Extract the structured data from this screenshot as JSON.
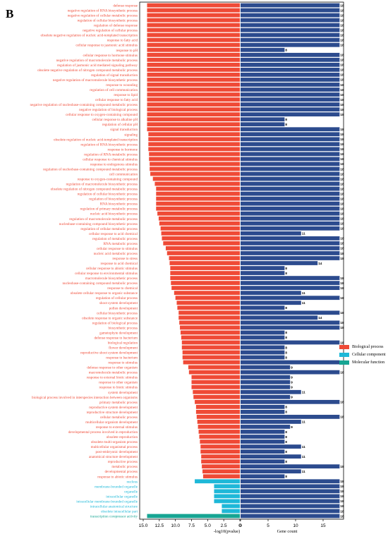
{
  "panel_label": "B",
  "colors": {
    "biological": "#ef4a36",
    "cellular": "#1eb8d8",
    "molecular": "#17a593",
    "count": "#2c4b8e"
  },
  "chart_data": {
    "type": "bar",
    "left_xlabel": "-log10(pvalue)",
    "right_xlabel": "Gene count",
    "left_xlim": [
      15,
      0
    ],
    "left_ticks": [
      "15.0",
      "12.5",
      "10.0",
      "7.5",
      "5.0",
      "2.5",
      "0"
    ],
    "right_xlim": [
      0,
      20
    ],
    "right_ticks": [
      "0",
      "5",
      "10",
      "15"
    ],
    "legend": [
      {
        "label": "Biological process",
        "category": "biological"
      },
      {
        "label": "Cellular component",
        "category": "cellular"
      },
      {
        "label": "Molecular function",
        "category": "molecular"
      }
    ],
    "terms": [
      {
        "term": "defense response",
        "category": "biological",
        "log_p": 14.4,
        "count": 18
      },
      {
        "term": "negative regulation of RNA biosynthetic process",
        "category": "biological",
        "log_p": 14.4,
        "count": 18
      },
      {
        "term": "negative regulation of cellular metabolic process",
        "category": "biological",
        "log_p": 14.4,
        "count": 18
      },
      {
        "term": "regulation of cellular biosynthetic process",
        "category": "biological",
        "log_p": 14.4,
        "count": 18
      },
      {
        "term": "regulation of defense response",
        "category": "biological",
        "log_p": 14.4,
        "count": 18
      },
      {
        "term": "negative regulation of cellular process",
        "category": "biological",
        "log_p": 14.4,
        "count": 18
      },
      {
        "term": "obsolete negative regulation of nucleic acid-templated transcription",
        "category": "biological",
        "log_p": 14.4,
        "count": 18
      },
      {
        "term": "response to fatty acid",
        "category": "biological",
        "log_p": 14.4,
        "count": 18
      },
      {
        "term": "cellular response to jasmonic acid stimulus",
        "category": "biological",
        "log_p": 14.4,
        "count": 18
      },
      {
        "term": "response to pH",
        "category": "biological",
        "log_p": 14.4,
        "count": 8
      },
      {
        "term": "cellular response to hormone stimulus",
        "category": "biological",
        "log_p": 14.4,
        "count": 18
      },
      {
        "term": "negative regulation of macromolecule metabolic process",
        "category": "biological",
        "log_p": 14.4,
        "count": 18
      },
      {
        "term": "regulation of jasmonic acid mediated signaling pathway",
        "category": "biological",
        "log_p": 14.4,
        "count": 18
      },
      {
        "term": "obsolete negative regulation of nitrogen compound metabolic process",
        "category": "biological",
        "log_p": 14.4,
        "count": 18
      },
      {
        "term": "regulation of signal transduction",
        "category": "biological",
        "log_p": 14.4,
        "count": 18
      },
      {
        "term": "negative regulation of macromolecule biosynthetic process",
        "category": "biological",
        "log_p": 14.4,
        "count": 18
      },
      {
        "term": "response to wounding",
        "category": "biological",
        "log_p": 14.4,
        "count": 18
      },
      {
        "term": "regulation of cell communication",
        "category": "biological",
        "log_p": 14.4,
        "count": 18
      },
      {
        "term": "response to lipid",
        "category": "biological",
        "log_p": 14.4,
        "count": 18
      },
      {
        "term": "cellular response to fatty acid",
        "category": "biological",
        "log_p": 14.4,
        "count": 18
      },
      {
        "term": "negative regulation of nucleobase-containing compound metabolic process",
        "category": "biological",
        "log_p": 14.4,
        "count": 18
      },
      {
        "term": "negative regulation of biological process",
        "category": "biological",
        "log_p": 14.4,
        "count": 18
      },
      {
        "term": "cellular response to oxygen-containing compound",
        "category": "biological",
        "log_p": 14.4,
        "count": 18
      },
      {
        "term": "cellular response to alkaline pH",
        "category": "biological",
        "log_p": 14.4,
        "count": 8
      },
      {
        "term": "regulation of cellular pH",
        "category": "biological",
        "log_p": 14.4,
        "count": 8
      },
      {
        "term": "signal transduction",
        "category": "biological",
        "log_p": 14.4,
        "count": 18
      },
      {
        "term": "signaling",
        "category": "biological",
        "log_p": 14.2,
        "count": 18
      },
      {
        "term": "obsolete regulation of nucleic acid-templated transcription",
        "category": "biological",
        "log_p": 14.2,
        "count": 18
      },
      {
        "term": "regulation of RNA biosynthetic process",
        "category": "biological",
        "log_p": 14.2,
        "count": 18
      },
      {
        "term": "response to hormone",
        "category": "biological",
        "log_p": 14.2,
        "count": 18
      },
      {
        "term": "regulation of RNA metabolic process",
        "category": "biological",
        "log_p": 14.1,
        "count": 18
      },
      {
        "term": "cellular response to chemical stimulus",
        "category": "biological",
        "log_p": 14.1,
        "count": 18
      },
      {
        "term": "response to endogenous stimulus",
        "category": "biological",
        "log_p": 14.0,
        "count": 18
      },
      {
        "term": "regulation of nucleobase-containing compound metabolic process",
        "category": "biological",
        "log_p": 14.0,
        "count": 18
      },
      {
        "term": "cell communication",
        "category": "biological",
        "log_p": 13.9,
        "count": 18
      },
      {
        "term": "response to oxygen-containing compound",
        "category": "biological",
        "log_p": 13.5,
        "count": 18
      },
      {
        "term": "regulation of macromolecule biosynthetic process",
        "category": "biological",
        "log_p": 13.2,
        "count": 18
      },
      {
        "term": "obsolete regulation of nitrogen compound metabolic process",
        "category": "biological",
        "log_p": 13.0,
        "count": 18
      },
      {
        "term": "regulation of cellular biosynthetic process",
        "category": "biological",
        "log_p": 13.0,
        "count": 18
      },
      {
        "term": "regulation of biosynthetic process",
        "category": "biological",
        "log_p": 13.0,
        "count": 18
      },
      {
        "term": "RNA biosynthetic process",
        "category": "biological",
        "log_p": 13.0,
        "count": 18
      },
      {
        "term": "regulation of primary metabolic process",
        "category": "biological",
        "log_p": 13.0,
        "count": 18
      },
      {
        "term": "nucleic acid biosynthetic process",
        "category": "biological",
        "log_p": 12.8,
        "count": 18
      },
      {
        "term": "regulation of macromolecule metabolic process",
        "category": "biological",
        "log_p": 12.6,
        "count": 18
      },
      {
        "term": "nucleobase-containing compound biosynthetic process",
        "category": "biological",
        "log_p": 12.5,
        "count": 18
      },
      {
        "term": "regulation of cellular metabolic process",
        "category": "biological",
        "log_p": 12.3,
        "count": 18
      },
      {
        "term": "cellular response to acid chemical",
        "category": "biological",
        "log_p": 12.2,
        "count": 11
      },
      {
        "term": "regulation of metabolic process",
        "category": "biological",
        "log_p": 12.1,
        "count": 18
      },
      {
        "term": "RNA metabolic process",
        "category": "biological",
        "log_p": 11.9,
        "count": 18
      },
      {
        "term": "cellular response to stimulus",
        "category": "biological",
        "log_p": 11.5,
        "count": 18
      },
      {
        "term": "nucleic acid metabolic process",
        "category": "biological",
        "log_p": 11.3,
        "count": 18
      },
      {
        "term": "response to stress",
        "category": "biological",
        "log_p": 11.0,
        "count": 18
      },
      {
        "term": "response to acid chemical",
        "category": "biological",
        "log_p": 10.9,
        "count": 14
      },
      {
        "term": "cellular response to abiotic stimulus",
        "category": "biological",
        "log_p": 10.8,
        "count": 8
      },
      {
        "term": "cellular response to environmental stimulus",
        "category": "biological",
        "log_p": 10.8,
        "count": 8
      },
      {
        "term": "macromolecule biosynthetic process",
        "category": "biological",
        "log_p": 10.8,
        "count": 18
      },
      {
        "term": "nucleobase-containing compound metabolic process",
        "category": "biological",
        "log_p": 10.7,
        "count": 18
      },
      {
        "term": "response to chemical",
        "category": "biological",
        "log_p": 10.6,
        "count": 18
      },
      {
        "term": "obsolete cellular response to organic substance",
        "category": "biological",
        "log_p": 10.2,
        "count": 11
      },
      {
        "term": "regulation of cellular process",
        "category": "biological",
        "log_p": 10.0,
        "count": 18
      },
      {
        "term": "shoot system development",
        "category": "biological",
        "log_p": 9.8,
        "count": 11
      },
      {
        "term": "pollen development",
        "category": "biological",
        "log_p": 9.7,
        "count": 8
      },
      {
        "term": "cellular biosynthetic process",
        "category": "biological",
        "log_p": 9.5,
        "count": 18
      },
      {
        "term": "obsolete response to organic substance",
        "category": "biological",
        "log_p": 9.5,
        "count": 14
      },
      {
        "term": "regulation of biological process",
        "category": "biological",
        "log_p": 9.4,
        "count": 18
      },
      {
        "term": "biosynthetic process",
        "category": "biological",
        "log_p": 9.3,
        "count": 18
      },
      {
        "term": "gametophyte development",
        "category": "biological",
        "log_p": 9.2,
        "count": 8
      },
      {
        "term": "defense response to bacterium",
        "category": "biological",
        "log_p": 9.1,
        "count": 8
      },
      {
        "term": "biological regulation",
        "category": "biological",
        "log_p": 9.0,
        "count": 18
      },
      {
        "term": "flower development",
        "category": "biological",
        "log_p": 9.0,
        "count": 8
      },
      {
        "term": "reproductive shoot system development",
        "category": "biological",
        "log_p": 8.9,
        "count": 8
      },
      {
        "term": "response to bacterium",
        "category": "biological",
        "log_p": 8.9,
        "count": 8
      },
      {
        "term": "response to stimulus",
        "category": "biological",
        "log_p": 8.8,
        "count": 18
      },
      {
        "term": "defense response to other organism",
        "category": "biological",
        "log_p": 8.0,
        "count": 9
      },
      {
        "term": "macromolecule metabolic process",
        "category": "biological",
        "log_p": 7.9,
        "count": 18
      },
      {
        "term": "response to external biotic stimulus",
        "category": "biological",
        "log_p": 7.5,
        "count": 9
      },
      {
        "term": "response to other organism",
        "category": "biological",
        "log_p": 7.5,
        "count": 9
      },
      {
        "term": "response to biotic stimulus",
        "category": "biological",
        "log_p": 7.5,
        "count": 9
      },
      {
        "term": "system development",
        "category": "biological",
        "log_p": 7.3,
        "count": 11
      },
      {
        "term": "biological process involved in interspecies interaction between organisms",
        "category": "biological",
        "log_p": 7.2,
        "count": 9
      },
      {
        "term": "primary metabolic process",
        "category": "biological",
        "log_p": 7.0,
        "count": 18
      },
      {
        "term": "reproductive system development",
        "category": "biological",
        "log_p": 6.8,
        "count": 8
      },
      {
        "term": "reproductive structure development",
        "category": "biological",
        "log_p": 6.8,
        "count": 8
      },
      {
        "term": "cellular metabolic process",
        "category": "biological",
        "log_p": 6.7,
        "count": 18
      },
      {
        "term": "multicellular organism development",
        "category": "biological",
        "log_p": 6.6,
        "count": 11
      },
      {
        "term": "response to external stimulus",
        "category": "biological",
        "log_p": 6.5,
        "count": 9
      },
      {
        "term": "developmental process involved in reproduction",
        "category": "biological",
        "log_p": 6.4,
        "count": 8
      },
      {
        "term": "obsolete reproduction",
        "category": "biological",
        "log_p": 6.3,
        "count": 8
      },
      {
        "term": "obsolete multi-organism process",
        "category": "biological",
        "log_p": 6.2,
        "count": 8
      },
      {
        "term": "multicellular organismal process",
        "category": "biological",
        "log_p": 6.1,
        "count": 11
      },
      {
        "term": "post-embryonic development",
        "category": "biological",
        "log_p": 6.1,
        "count": 8
      },
      {
        "term": "anatomical structure development",
        "category": "biological",
        "log_p": 6.0,
        "count": 11
      },
      {
        "term": "reproductive process",
        "category": "biological",
        "log_p": 6.0,
        "count": 8
      },
      {
        "term": "metabolic process",
        "category": "biological",
        "log_p": 5.9,
        "count": 18
      },
      {
        "term": "developmental process",
        "category": "biological",
        "log_p": 5.8,
        "count": 11
      },
      {
        "term": "response to abiotic stimulus",
        "category": "biological",
        "log_p": 5.7,
        "count": 8
      },
      {
        "term": "nucleus",
        "category": "cellular",
        "log_p": 7.0,
        "count": 18
      },
      {
        "term": "membrane-bounded organelle",
        "category": "cellular",
        "log_p": 4.0,
        "count": 18
      },
      {
        "term": "organelle",
        "category": "cellular",
        "log_p": 4.0,
        "count": 18
      },
      {
        "term": "intracellular organelle",
        "category": "cellular",
        "log_p": 4.0,
        "count": 18
      },
      {
        "term": "intracellular membrane-bounded organelle",
        "category": "cellular",
        "log_p": 4.0,
        "count": 18
      },
      {
        "term": "intracellular anatomical structure",
        "category": "cellular",
        "log_p": 2.8,
        "count": 18
      },
      {
        "term": "obsolete intracellular part",
        "category": "cellular",
        "log_p": 2.8,
        "count": 18
      },
      {
        "term": "transcription corepressor activity",
        "category": "molecular",
        "log_p": 14.4,
        "count": 18
      }
    ]
  }
}
